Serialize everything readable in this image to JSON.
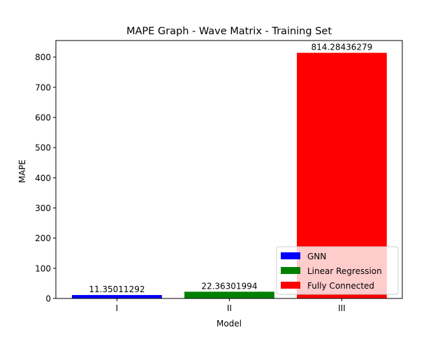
{
  "chart_data": {
    "type": "bar",
    "title": "MAPE Graph - Wave Matrix - Training Set",
    "xlabel": "Model",
    "ylabel": "MAPE",
    "categories": [
      "I",
      "II",
      "III"
    ],
    "values": [
      11.35011292,
      22.36301994,
      814.28436279
    ],
    "data_labels": [
      "11.35011292",
      "22.36301994",
      "814.28436279"
    ],
    "colors": [
      "#0000ff",
      "#008000",
      "#ff0000"
    ],
    "legend": {
      "placement": "lower right",
      "entries": [
        "GNN",
        "Linear Regression",
        "Fully Connected"
      ]
    },
    "ylim": [
      0,
      855.0
    ],
    "yticks": [
      0,
      100,
      200,
      300,
      400,
      500,
      600,
      700,
      800
    ],
    "ytick_labels": [
      "0",
      "100",
      "200",
      "300",
      "400",
      "500",
      "600",
      "700",
      "800"
    ],
    "grid": false
  }
}
